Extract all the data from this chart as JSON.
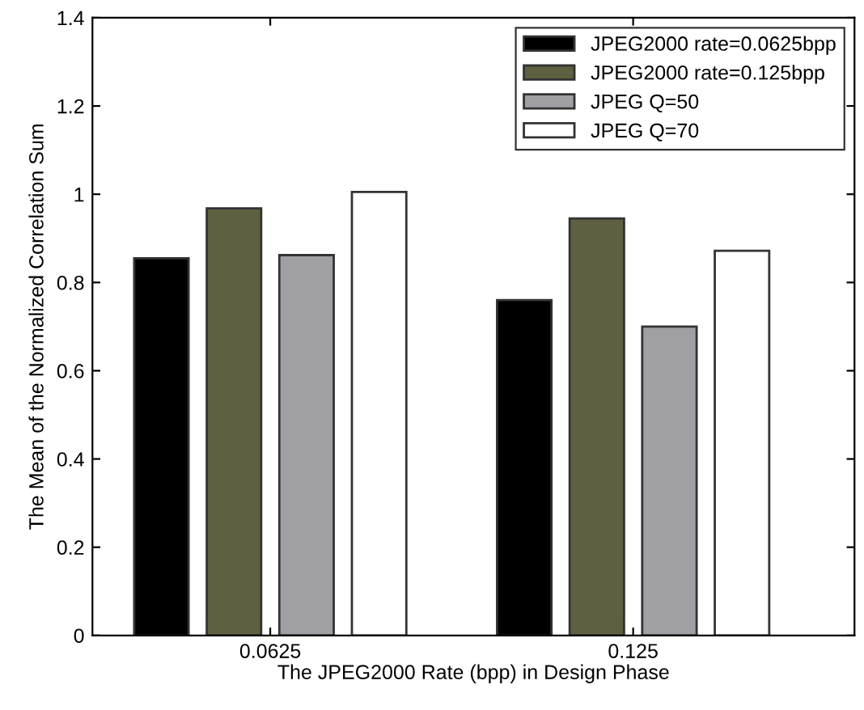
{
  "chart_data": {
    "type": "bar",
    "xlabel": "The JPEG2000 Rate (bpp) in Design Phase",
    "ylabel": "The Mean of the Normalized Correlation Sum",
    "categories": [
      "0.0625",
      "0.125"
    ],
    "series": [
      {
        "name": "JPEG2000 rate=0.0625bpp",
        "color": "#000000",
        "values": [
          0.855,
          0.76
        ]
      },
      {
        "name": "JPEG2000 rate=0.125bpp",
        "color": "#5f5f41",
        "values": [
          0.968,
          0.945
        ]
      },
      {
        "name": "JPEG Q=50",
        "color": "#a0a0a4",
        "values": [
          0.862,
          0.7
        ]
      },
      {
        "name": "JPEG Q=70",
        "color": "#ffffff",
        "values": [
          1.005,
          0.872
        ]
      }
    ],
    "ylim": [
      0,
      1.4
    ],
    "yticks": [
      0,
      0.2,
      0.4,
      0.6,
      0.8,
      1,
      1.2,
      1.4
    ],
    "grid": false,
    "legend": "top right"
  }
}
